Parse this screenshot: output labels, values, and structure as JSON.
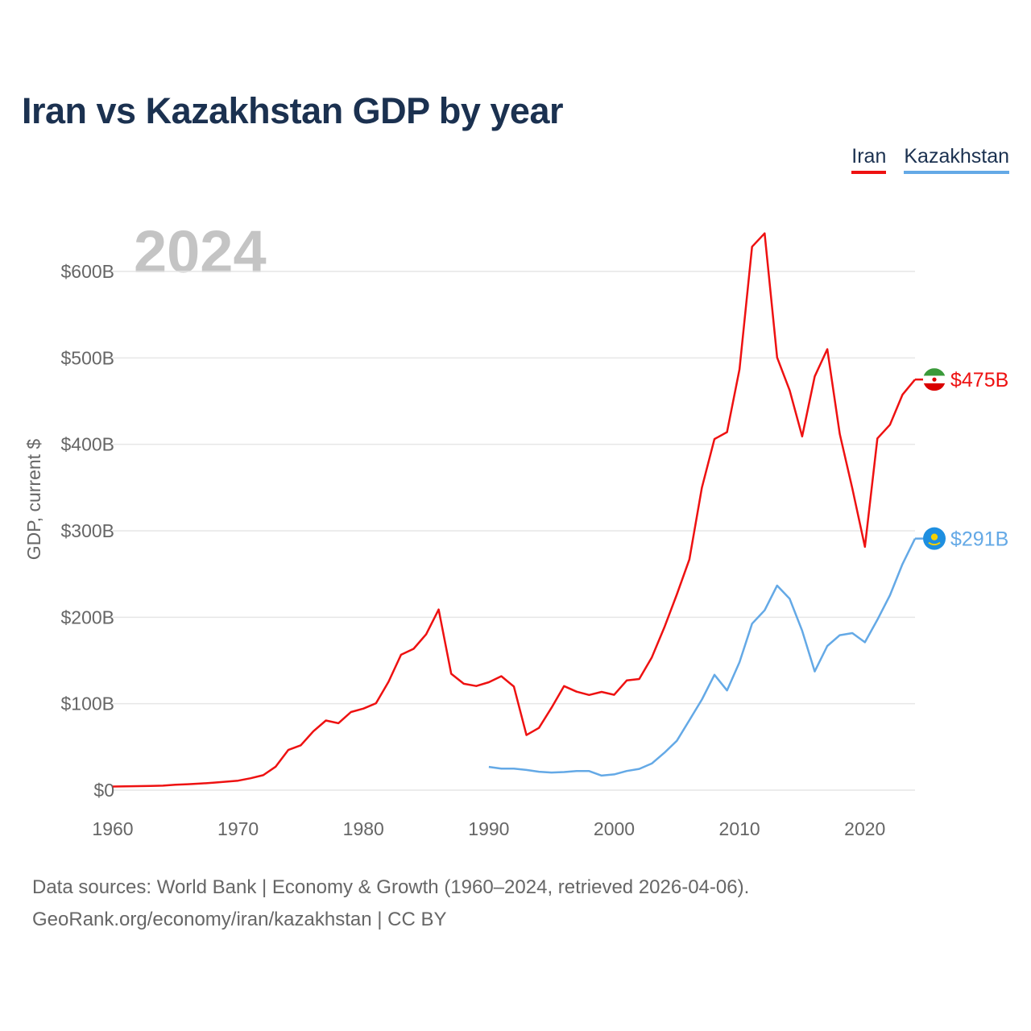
{
  "title": "Iran vs Kazakhstan GDP by year",
  "legend": [
    {
      "label": "Iran",
      "color": "#ee1111"
    },
    {
      "label": "Kazakhstan",
      "color": "#64a9e6"
    }
  ],
  "footer": {
    "line1": "Data sources: World Bank | Economy & Growth (1960–2024, retrieved 2026-04-06).",
    "line2": "GeoRank.org/economy/iran/kazakhstan | CC BY"
  },
  "chart_data": {
    "type": "line",
    "title": "Iran vs Kazakhstan GDP by year",
    "watermark_year": "2024",
    "xlabel": "",
    "ylabel": "GDP, current $",
    "xlim": [
      1960,
      2024
    ],
    "ylim": [
      0,
      600
    ],
    "y_unit": "billion USD",
    "grid": true,
    "legend_position": "top-right",
    "x_ticks": [
      1960,
      1970,
      1980,
      1990,
      2000,
      2010,
      2020
    ],
    "x_tick_labels": [
      "1960",
      "1970",
      "1980",
      "1990",
      "2000",
      "2010",
      "2020"
    ],
    "y_ticks": [
      0,
      100,
      200,
      300,
      400,
      500,
      600
    ],
    "y_tick_labels": [
      "$0",
      "$100B",
      "$200B",
      "$300B",
      "$400B",
      "$500B",
      "$600B"
    ],
    "series": [
      {
        "name": "Iran",
        "color": "#ee1111",
        "end_label": "$475B",
        "x": [
          1960,
          1961,
          1962,
          1963,
          1964,
          1965,
          1966,
          1967,
          1968,
          1969,
          1970,
          1971,
          1972,
          1973,
          1974,
          1975,
          1976,
          1977,
          1978,
          1979,
          1980,
          1981,
          1982,
          1983,
          1984,
          1985,
          1986,
          1987,
          1988,
          1989,
          1990,
          1991,
          1992,
          1993,
          1994,
          1995,
          1996,
          1997,
          1998,
          1999,
          2000,
          2001,
          2002,
          2003,
          2004,
          2005,
          2006,
          2007,
          2008,
          2009,
          2010,
          2011,
          2012,
          2013,
          2014,
          2015,
          2016,
          2017,
          2018,
          2019,
          2020,
          2021,
          2022,
          2023,
          2024
        ],
        "values": [
          4.2,
          4.4,
          4.7,
          4.9,
          5.2,
          6.2,
          6.9,
          7.6,
          8.6,
          9.8,
          11,
          13.8,
          17.3,
          27.2,
          46.5,
          51.9,
          68.1,
          80.6,
          77.4,
          90.4,
          94.4,
          100.5,
          125.4,
          156.6,
          163.5,
          180.4,
          209,
          134.6,
          123.1,
          120.5,
          124.8,
          131.8,
          119.8,
          63.7,
          72,
          95.3,
          120.4,
          113.9,
          110.1,
          113.7,
          110.3,
          126.9,
          128.6,
          153.5,
          188.3,
          226.4,
          267,
          349.9,
          406.1,
          414.1,
          486.8,
          628.6,
          644.1,
          500.5,
          462.4,
          409.2,
          478.6,
          510.1,
          411.9,
          348.9,
          281.5,
          406.9,
          422.7,
          457.4,
          475
        ]
      },
      {
        "name": "Kazakhstan",
        "color": "#64a9e6",
        "end_label": "$291B",
        "x": [
          1990,
          1991,
          1992,
          1993,
          1994,
          1995,
          1996,
          1997,
          1998,
          1999,
          2000,
          2001,
          2002,
          2003,
          2004,
          2005,
          2006,
          2007,
          2008,
          2009,
          2010,
          2011,
          2012,
          2013,
          2014,
          2015,
          2016,
          2017,
          2018,
          2019,
          2020,
          2021,
          2022,
          2023,
          2024
        ],
        "values": [
          26.9,
          24.9,
          24.9,
          23.4,
          21.3,
          20.4,
          21,
          22.2,
          22.1,
          16.9,
          18.3,
          22.2,
          24.6,
          30.8,
          43.2,
          57.1,
          81,
          104.8,
          133.4,
          115.3,
          148,
          192.6,
          208,
          236.6,
          221.4,
          184.4,
          137.3,
          166.8,
          179.3,
          181.7,
          171.1,
          197.1,
          225.5,
          261.4,
          291
        ]
      }
    ]
  }
}
